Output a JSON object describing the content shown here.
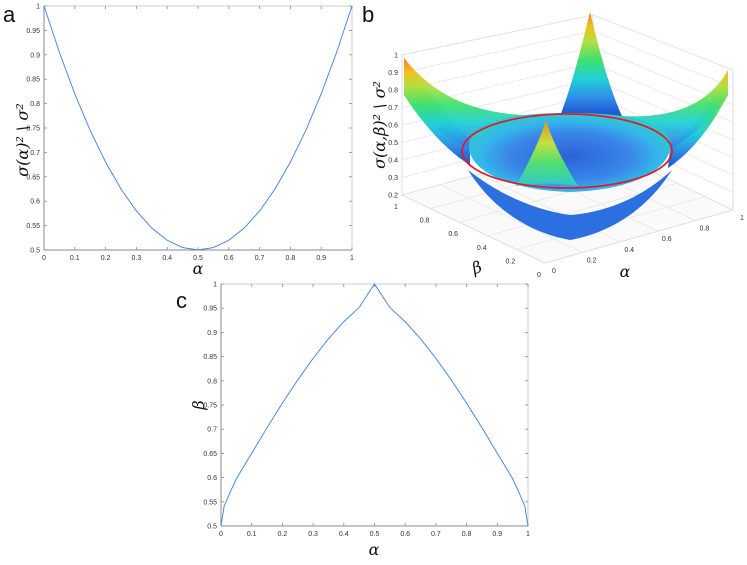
{
  "panels": {
    "a": {
      "letter": "a"
    },
    "b": {
      "letter": "b"
    },
    "c": {
      "letter": "c"
    }
  },
  "chart_data": [
    {
      "id": "a",
      "type": "line",
      "title": "",
      "xlabel": "α",
      "ylabel": "σ(α)² \\ σ²",
      "xlim": [
        0,
        1
      ],
      "ylim": [
        0.5,
        1
      ],
      "xticks": [
        "0",
        "0.1",
        "0.2",
        "0.3",
        "0.4",
        "0.5",
        "0.6",
        "0.7",
        "0.8",
        "0.9",
        "1"
      ],
      "yticks": [
        "0.5",
        "0.55",
        "0.6",
        "0.65",
        "0.7",
        "0.75",
        "0.8",
        "0.85",
        "0.9",
        "0.95",
        "1"
      ],
      "series": [
        {
          "color": "#3f7fd8",
          "x": [
            0,
            0.05,
            0.1,
            0.15,
            0.2,
            0.25,
            0.3,
            0.35,
            0.4,
            0.45,
            0.5,
            0.55,
            0.6,
            0.65,
            0.7,
            0.75,
            0.8,
            0.85,
            0.9,
            0.95,
            1
          ],
          "y": [
            1,
            0.905,
            0.82,
            0.745,
            0.68,
            0.625,
            0.58,
            0.545,
            0.52,
            0.505,
            0.5,
            0.505,
            0.52,
            0.545,
            0.58,
            0.625,
            0.68,
            0.745,
            0.82,
            0.905,
            1
          ]
        }
      ]
    },
    {
      "id": "b",
      "type": "surface",
      "title": "",
      "xlabel": "α",
      "ylabel": "β",
      "zlabel": "σ(α,β)² \\ σ²",
      "xlim": [
        0,
        1
      ],
      "ylim": [
        0,
        1
      ],
      "zlim": [
        0.2,
        1
      ],
      "xticks": [
        "0",
        "0.2",
        "0.4",
        "0.6",
        "0.8",
        "1"
      ],
      "yticks": [
        "0",
        "0.2",
        "0.4",
        "0.6",
        "0.8",
        "1"
      ],
      "zticks": [
        "0.2",
        "0.3",
        "0.4",
        "0.5",
        "0.6",
        "0.7",
        "0.8",
        "0.9",
        "1"
      ],
      "surface_min": 0.25,
      "surface_max": 1,
      "contour_level": 0.5,
      "contour_color": "#d8202a",
      "colormap": [
        "#1f4fd0",
        "#2f8fe8",
        "#20d0d8",
        "#40e070",
        "#b0e040",
        "#f0c020",
        "#f08020"
      ]
    },
    {
      "id": "c",
      "type": "line",
      "title": "",
      "xlabel": "α",
      "ylabel": "β",
      "xlim": [
        0,
        1
      ],
      "ylim": [
        0.5,
        1
      ],
      "xticks": [
        "0",
        "0.1",
        "0.2",
        "0.3",
        "0.4",
        "0.5",
        "0.6",
        "0.7",
        "0.8",
        "0.9",
        "1"
      ],
      "yticks": [
        "0.5",
        "0.55",
        "0.6",
        "0.65",
        "0.7",
        "0.75",
        "0.8",
        "0.85",
        "0.9",
        "0.95",
        "1"
      ],
      "series": [
        {
          "color": "#3f7fd8",
          "x": [
            0,
            0.01,
            0.03,
            0.05,
            0.1,
            0.15,
            0.2,
            0.25,
            0.3,
            0.35,
            0.4,
            0.45,
            0.5,
            0.55,
            0.6,
            0.65,
            0.7,
            0.75,
            0.8,
            0.85,
            0.9,
            0.95,
            0.97,
            0.99,
            1
          ],
          "y": [
            0.5,
            0.5404,
            0.5701,
            0.5976,
            0.6504,
            0.7031,
            0.7538,
            0.8018,
            0.8464,
            0.8867,
            0.922,
            0.9514,
            1.0,
            0.9514,
            0.922,
            0.8867,
            0.8464,
            0.8018,
            0.7538,
            0.7031,
            0.6504,
            0.5976,
            0.5701,
            0.5404,
            0.5
          ]
        }
      ]
    }
  ]
}
